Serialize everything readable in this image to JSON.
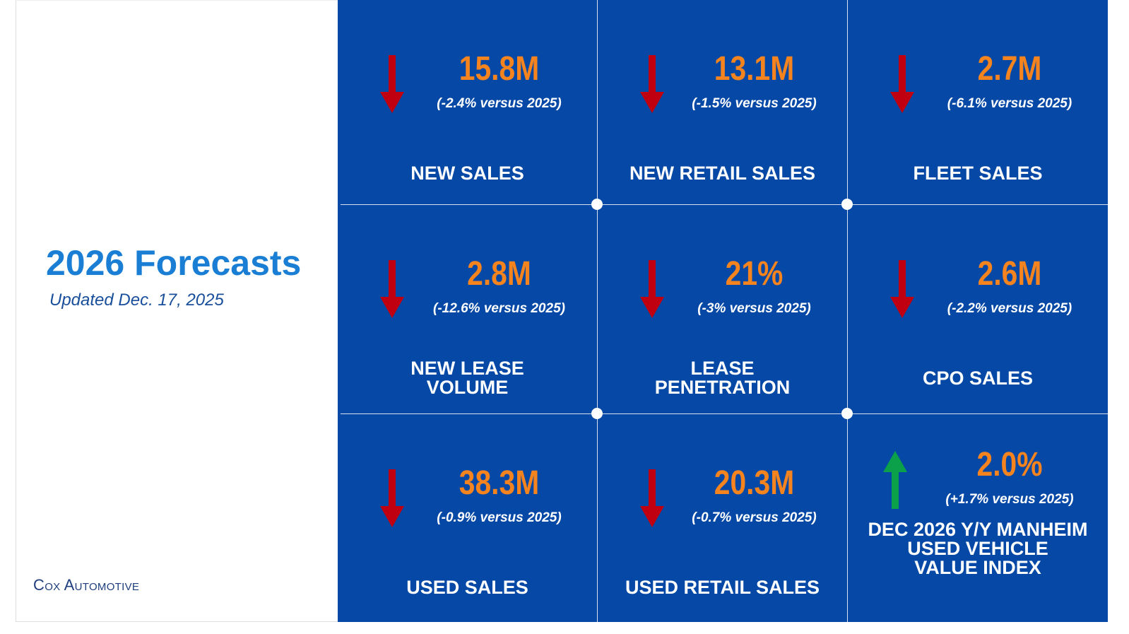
{
  "header": {
    "title": "2026 Forecasts",
    "subtitle": "Updated Dec. 17, 2025",
    "logo": "Cox Automotive"
  },
  "tiles": [
    {
      "value": "15.8M",
      "change": "(-2.4% versus 2025)",
      "label": [
        "NEW SALES"
      ],
      "arrow": "down"
    },
    {
      "value": "13.1M",
      "change": "(-1.5% versus 2025)",
      "label": [
        "NEW RETAIL SALES"
      ],
      "arrow": "down"
    },
    {
      "value": "2.7M",
      "change": "(-6.1% versus 2025)",
      "label": [
        "FLEET SALES"
      ],
      "arrow": "down"
    },
    {
      "value": "2.8M",
      "change": "(-12.6% versus 2025)",
      "label": [
        "NEW LEASE",
        "VOLUME"
      ],
      "arrow": "down"
    },
    {
      "value": "21%",
      "change": "(-3% versus 2025)",
      "label": [
        "LEASE",
        "PENETRATION"
      ],
      "arrow": "down"
    },
    {
      "value": "2.6M",
      "change": "(-2.2% versus 2025)",
      "label": [
        "CPO SALES"
      ],
      "arrow": "down"
    },
    {
      "value": "38.3M",
      "change": "(-0.9% versus 2025)",
      "label": [
        "USED SALES"
      ],
      "arrow": "down"
    },
    {
      "value": "20.3M",
      "change": "(-0.7% versus 2025)",
      "label": [
        "USED RETAIL SALES"
      ],
      "arrow": "down"
    },
    {
      "value": "2.0%",
      "change": "(+1.7% versus 2025)",
      "label": [
        "DEC 2026 Y/Y MANHEIM",
        "USED VEHICLE",
        "VALUE INDEX"
      ],
      "arrow": "up"
    }
  ]
}
